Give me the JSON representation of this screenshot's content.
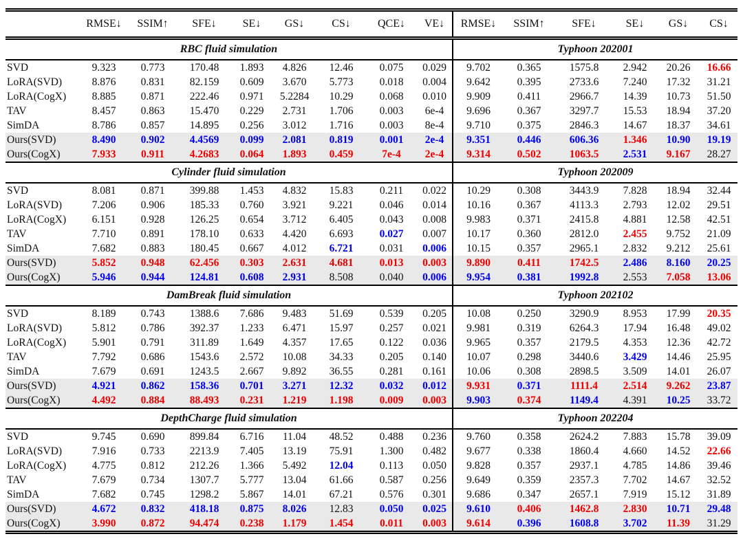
{
  "page": {
    "background": "#ffffff"
  },
  "colors": {
    "best": "#ee0000",
    "second": "#0000ee",
    "text": "#111111",
    "highlight": "#e9e9e9",
    "rule": "#000000"
  },
  "header": {
    "method_column": "",
    "left_metrics": [
      "RMSE↓",
      "SSIM↑",
      "SFE↓",
      "SE↓",
      "GS↓",
      "CS↓",
      "QCE↓",
      "VE↓"
    ],
    "right_metrics": [
      "RMSE↓",
      "SSIM↑",
      "SFE↓",
      "SE↓",
      "GS↓",
      "CS↓"
    ]
  },
  "sections": [
    {
      "left_title": "RBC fluid simulation",
      "right_title": "Typhoon 202001",
      "rows": [
        {
          "method": "SVD",
          "hl": false,
          "left": [
            "9.323",
            "0.773",
            "170.48",
            "1.893",
            "4.826",
            "12.46",
            "0.075",
            "0.029"
          ],
          "lc": "kkkkkkkk",
          "right": [
            "9.702",
            "0.365",
            "1575.8",
            "2.942",
            "20.26",
            "16.66"
          ],
          "rc": "kkkkkr"
        },
        {
          "method": "LoRA(SVD)",
          "hl": false,
          "left": [
            "8.876",
            "0.831",
            "82.159",
            "0.609",
            "3.670",
            "5.773",
            "0.018",
            "0.004"
          ],
          "lc": "kkkkkkkk",
          "right": [
            "9.642",
            "0.395",
            "2733.6",
            "7.240",
            "17.32",
            "31.21"
          ],
          "rc": "kkkkkk"
        },
        {
          "method": "LoRA(CogX)",
          "hl": false,
          "left": [
            "8.885",
            "0.871",
            "222.46",
            "0.971",
            "5.2284",
            "10.29",
            "0.068",
            "0.010"
          ],
          "lc": "kkkkkkkk",
          "right": [
            "9.909",
            "0.411",
            "2966.7",
            "14.39",
            "10.73",
            "51.50"
          ],
          "rc": "kkkkkk"
        },
        {
          "method": "TAV",
          "hl": false,
          "left": [
            "8.457",
            "0.863",
            "15.470",
            "0.229",
            "2.731",
            "1.706",
            "0.003",
            "6e-4"
          ],
          "lc": "kkkkkkkk",
          "right": [
            "9.696",
            "0.367",
            "3297.7",
            "15.53",
            "18.94",
            "37.20"
          ],
          "rc": "kkkkkk"
        },
        {
          "method": "SimDA",
          "hl": false,
          "left": [
            "8.786",
            "0.857",
            "14.895",
            "0.256",
            "3.012",
            "1.716",
            "0.003",
            "8e-4"
          ],
          "lc": "kkkkkkkk",
          "right": [
            "9.710",
            "0.375",
            "2846.3",
            "14.67",
            "18.37",
            "34.61"
          ],
          "rc": "kkkkkk"
        },
        {
          "method": "Ours(SVD)",
          "hl": true,
          "left": [
            "8.490",
            "0.902",
            "4.4569",
            "0.099",
            "2.081",
            "0.819",
            "0.001",
            "2e-4"
          ],
          "lc": "bbbbbbbb",
          "right": [
            "9.351",
            "0.446",
            "606.36",
            "1.346",
            "10.90",
            "19.19"
          ],
          "rc": "bbbrbb"
        },
        {
          "method": "Ours(CogX)",
          "hl": true,
          "left": [
            "7.933",
            "0.911",
            "4.2683",
            "0.064",
            "1.893",
            "0.459",
            "7e-4",
            "2e-4"
          ],
          "lc": "rrrrrrrr",
          "right": [
            "9.314",
            "0.502",
            "1063.5",
            "2.531",
            "9.167",
            "28.27"
          ],
          "rc": "rrrbrk"
        }
      ]
    },
    {
      "left_title": "Cylinder fluid simulation",
      "right_title": "Typhoon 202009",
      "rows": [
        {
          "method": "SVD",
          "hl": false,
          "left": [
            "8.081",
            "0.871",
            "399.88",
            "1.453",
            "4.832",
            "15.83",
            "0.211",
            "0.022"
          ],
          "lc": "kkkkkkkk",
          "right": [
            "10.29",
            "0.308",
            "3443.9",
            "7.828",
            "18.94",
            "32.44"
          ],
          "rc": "kkkkkk"
        },
        {
          "method": "LoRA(SVD)",
          "hl": false,
          "left": [
            "7.206",
            "0.906",
            "185.33",
            "0.760",
            "3.921",
            "9.221",
            "0.046",
            "0.014"
          ],
          "lc": "kkkkkkkk",
          "right": [
            "10.16",
            "0.367",
            "4113.3",
            "2.793",
            "12.02",
            "29.51"
          ],
          "rc": "kkkkkk"
        },
        {
          "method": "LoRA(CogX)",
          "hl": false,
          "left": [
            "6.151",
            "0.928",
            "126.25",
            "0.654",
            "3.712",
            "6.405",
            "0.043",
            "0.008"
          ],
          "lc": "kkkkkkkk",
          "right": [
            "9.983",
            "0.371",
            "2415.8",
            "4.881",
            "12.58",
            "42.51"
          ],
          "rc": "kkkkkk"
        },
        {
          "method": "TAV",
          "hl": false,
          "left": [
            "7.710",
            "0.891",
            "178.10",
            "0.633",
            "4.420",
            "6.693",
            "0.027",
            "0.007"
          ],
          "lc": "kkkkkkbk",
          "right": [
            "10.17",
            "0.360",
            "2812.0",
            "2.455",
            "9.752",
            "21.09"
          ],
          "rc": "kkkrkk"
        },
        {
          "method": "SimDA",
          "hl": false,
          "left": [
            "7.682",
            "0.883",
            "180.45",
            "0.667",
            "4.012",
            "6.721",
            "0.031",
            "0.006"
          ],
          "lc": "kkkkkbkb",
          "right": [
            "10.15",
            "0.357",
            "2965.1",
            "2.832",
            "9.212",
            "25.61"
          ],
          "rc": "kkkkkk"
        },
        {
          "method": "Ours(SVD)",
          "hl": true,
          "left": [
            "5.852",
            "0.948",
            "62.456",
            "0.303",
            "2.631",
            "4.681",
            "0.013",
            "0.003"
          ],
          "lc": "rrrrrrrr",
          "right": [
            "9.890",
            "0.411",
            "1742.5",
            "2.486",
            "8.160",
            "20.25"
          ],
          "rc": "rrrbbb"
        },
        {
          "method": "Ours(CogX)",
          "hl": true,
          "left": [
            "5.946",
            "0.944",
            "124.81",
            "0.608",
            "2.931",
            "8.508",
            "0.040",
            "0.006"
          ],
          "lc": "bbbbbkkb",
          "right": [
            "9.954",
            "0.381",
            "1992.8",
            "2.553",
            "7.058",
            "13.06"
          ],
          "rc": "bbbkrr"
        }
      ]
    },
    {
      "left_title": "DamBreak fluid simulation",
      "right_title": "Typhoon 202102",
      "rows": [
        {
          "method": "SVD",
          "hl": false,
          "left": [
            "8.189",
            "0.743",
            "1388.6",
            "7.686",
            "9.483",
            "51.69",
            "0.539",
            "0.205"
          ],
          "lc": "kkkkkkkk",
          "right": [
            "10.08",
            "0.250",
            "3290.9",
            "8.953",
            "17.99",
            "20.35"
          ],
          "rc": "kkkkkr"
        },
        {
          "method": "LoRA(SVD)",
          "hl": false,
          "left": [
            "5.812",
            "0.786",
            "392.37",
            "1.233",
            "6.471",
            "15.97",
            "0.257",
            "0.021"
          ],
          "lc": "kkkkkkkk",
          "right": [
            "9.981",
            "0.319",
            "6264.3",
            "17.94",
            "16.48",
            "49.02"
          ],
          "rc": "kkkkkk"
        },
        {
          "method": "LoRA(CogX)",
          "hl": false,
          "left": [
            "5.901",
            "0.791",
            "311.89",
            "1.649",
            "4.357",
            "17.65",
            "0.122",
            "0.036"
          ],
          "lc": "kkkkkkkk",
          "right": [
            "9.965",
            "0.357",
            "2179.5",
            "4.353",
            "12.36",
            "42.72"
          ],
          "rc": "kkkkkk"
        },
        {
          "method": "TAV",
          "hl": false,
          "left": [
            "7.792",
            "0.686",
            "1543.6",
            "2.572",
            "10.08",
            "34.33",
            "0.205",
            "0.140"
          ],
          "lc": "kkkkkkkk",
          "right": [
            "10.07",
            "0.298",
            "3440.6",
            "3.429",
            "14.46",
            "25.95"
          ],
          "rc": "kkkbkk"
        },
        {
          "method": "SimDA",
          "hl": false,
          "left": [
            "7.679",
            "0.691",
            "1243.5",
            "2.667",
            "9.892",
            "36.55",
            "0.281",
            "0.161"
          ],
          "lc": "kkkkkkkk",
          "right": [
            "10.06",
            "0.308",
            "2898.5",
            "3.509",
            "14.01",
            "26.07"
          ],
          "rc": "kkkkkk"
        },
        {
          "method": "Ours(SVD)",
          "hl": true,
          "left": [
            "4.921",
            "0.862",
            "158.36",
            "0.701",
            "3.271",
            "12.32",
            "0.032",
            "0.012"
          ],
          "lc": "bbbbbbbb",
          "right": [
            "9.931",
            "0.371",
            "1111.4",
            "2.514",
            "9.262",
            "23.87"
          ],
          "rc": "rbrrrb"
        },
        {
          "method": "Ours(CogX)",
          "hl": true,
          "left": [
            "4.492",
            "0.884",
            "88.493",
            "0.231",
            "1.219",
            "1.198",
            "0.009",
            "0.003"
          ],
          "lc": "rrrrrrrr",
          "right": [
            "9.903",
            "0.374",
            "1149.4",
            "4.391",
            "10.25",
            "33.72"
          ],
          "rc": "brbkbk"
        }
      ]
    },
    {
      "left_title": "DepthCharge fluid simulation",
      "right_title": "Typhoon 202204",
      "rows": [
        {
          "method": "SVD",
          "hl": false,
          "left": [
            "9.745",
            "0.690",
            "899.84",
            "6.716",
            "11.04",
            "48.52",
            "0.488",
            "0.236"
          ],
          "lc": "kkkkkkkk",
          "right": [
            "9.760",
            "0.358",
            "2624.2",
            "7.883",
            "15.78",
            "39.09"
          ],
          "rc": "kkkkkk"
        },
        {
          "method": "LoRA(SVD)",
          "hl": false,
          "left": [
            "7.916",
            "0.733",
            "2213.9",
            "7.405",
            "13.19",
            "75.91",
            "1.300",
            "0.482"
          ],
          "lc": "kkkkkkkk",
          "right": [
            "9.677",
            "0.338",
            "1860.4",
            "4.660",
            "14.52",
            "22.66"
          ],
          "rc": "kkkkkr"
        },
        {
          "method": "LoRA(CogX)",
          "hl": false,
          "left": [
            "4.775",
            "0.812",
            "212.26",
            "1.366",
            "5.492",
            "12.04",
            "0.113",
            "0.050"
          ],
          "lc": "kkkkkbkk",
          "right": [
            "9.828",
            "0.357",
            "2937.1",
            "4.785",
            "14.86",
            "39.46"
          ],
          "rc": "kkkkkk"
        },
        {
          "method": "TAV",
          "hl": false,
          "left": [
            "7.679",
            "0.734",
            "1307.7",
            "5.777",
            "13.04",
            "61.66",
            "0.587",
            "0.256"
          ],
          "lc": "kkkkkkkk",
          "right": [
            "9.649",
            "0.359",
            "2357.3",
            "7.702",
            "14.67",
            "32.52"
          ],
          "rc": "kkkkkk"
        },
        {
          "method": "SimDA",
          "hl": false,
          "left": [
            "7.682",
            "0.745",
            "1298.2",
            "5.867",
            "14.01",
            "67.21",
            "0.576",
            "0.301"
          ],
          "lc": "kkkkkkkk",
          "right": [
            "9.686",
            "0.347",
            "2657.1",
            "7.919",
            "15.12",
            "31.89"
          ],
          "rc": "kkkkkk"
        },
        {
          "method": "Ours(SVD)",
          "hl": true,
          "left": [
            "4.672",
            "0.832",
            "418.18",
            "0.875",
            "8.026",
            "12.83",
            "0.050",
            "0.025"
          ],
          "lc": "bbbbbkbb",
          "right": [
            "9.610",
            "0.406",
            "1462.8",
            "2.830",
            "10.71",
            "29.48"
          ],
          "rc": "brrrbb"
        },
        {
          "method": "Ours(CogX)",
          "hl": true,
          "left": [
            "3.990",
            "0.872",
            "94.474",
            "0.238",
            "1.179",
            "1.454",
            "0.011",
            "0.003"
          ],
          "lc": "rrrrrrrr",
          "right": [
            "9.614",
            "0.396",
            "1608.8",
            "3.702",
            "11.39",
            "31.29"
          ],
          "rc": "rbbbrk"
        }
      ]
    }
  ]
}
